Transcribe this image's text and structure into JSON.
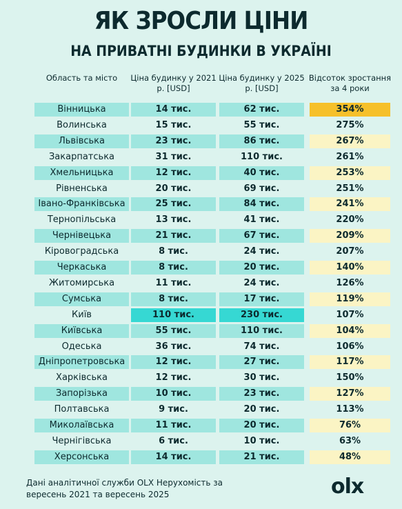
{
  "header": {
    "title": "ЯК ЗРОСЛИ ЦІНИ",
    "subtitle": "НА ПРИВАТНІ БУДИНКИ В УКРАЇНІ"
  },
  "table": {
    "columns": [
      "Область та місто",
      "Ціна будинку у 2021 р. [USD]",
      "Ціна будинку у 2025 р. [USD]",
      "Відсоток зростання за 4 роки"
    ],
    "rows": [
      [
        "Вінницька",
        "14 тис.",
        "62 тис.",
        "354%"
      ],
      [
        "Волинська",
        "15 тис.",
        "55 тис.",
        "275%"
      ],
      [
        "Львівська",
        "23 тис.",
        "86 тис.",
        "267%"
      ],
      [
        "Закарпатська",
        "31 тис.",
        "110 тис.",
        "261%"
      ],
      [
        "Хмельницька",
        "12 тис.",
        "40 тис.",
        "253%"
      ],
      [
        "Рівненська",
        "20 тис.",
        "69 тис.",
        "251%"
      ],
      [
        "Івано-Франківська",
        "25 тис.",
        "84 тис.",
        "241%"
      ],
      [
        "Тернопільська",
        "13 тис.",
        "41 тис.",
        "220%"
      ],
      [
        "Чернівецька",
        "21 тис.",
        "67 тис.",
        "209%"
      ],
      [
        "Кіровоградська",
        "8 тис.",
        "24 тис.",
        "207%"
      ],
      [
        "Черкаська",
        "8 тис.",
        "20 тис.",
        "140%"
      ],
      [
        "Житомирська",
        "11 тис.",
        "24 тис.",
        "126%"
      ],
      [
        "Сумська",
        "8 тис.",
        "17 тис.",
        "119%"
      ],
      [
        "Київ",
        "110 тис.",
        "230 тис.",
        "107%"
      ],
      [
        "Київська",
        "55 тис.",
        "110 тис.",
        "104%"
      ],
      [
        "Одеська",
        "36 тис.",
        "74 тис.",
        "106%"
      ],
      [
        "Дніпропетровська",
        "12 тис.",
        "27 тис.",
        "117%"
      ],
      [
        "Харківська",
        "12 тис.",
        "30 тис.",
        "150%"
      ],
      [
        "Запорізька",
        "10 тис.",
        "23 тис.",
        "127%"
      ],
      [
        "Полтавська",
        "9 тис.",
        "20 тис.",
        "113%"
      ],
      [
        "Миколаївська",
        "11 тис.",
        "20 тис.",
        "76%"
      ],
      [
        "Чернігівська",
        "6 тис.",
        "10 тис.",
        "63%"
      ],
      [
        "Херсонська",
        "14 тис.",
        "21 тис.",
        "48%"
      ]
    ]
  },
  "footer": {
    "source": "Дані аналітичної служби OLX Нерухомість за вересень 2021 та вересень 2025",
    "logo": "olx"
  }
}
